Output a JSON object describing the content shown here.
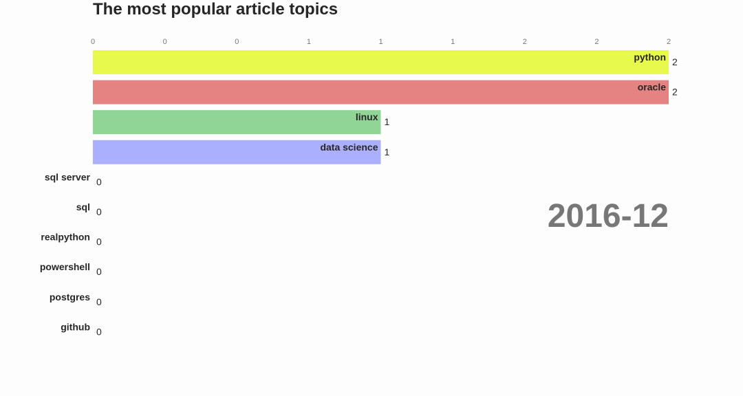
{
  "chart_data": {
    "type": "bar",
    "orientation": "horizontal",
    "title": "The most popular article topics",
    "period": "2016-12",
    "categories": [
      "python",
      "oracle",
      "linux",
      "data science",
      "sql server",
      "sql",
      "realpython",
      "powershell",
      "postgres",
      "github"
    ],
    "values": [
      2,
      2,
      1,
      1,
      0,
      0,
      0,
      0,
      0,
      0
    ],
    "value_labels": [
      "2",
      "2",
      "1",
      "1",
      "0",
      "0",
      "0",
      "0",
      "0",
      "0"
    ],
    "colors": [
      "#e8f94d",
      "#e58282",
      "#90d595",
      "#aaaffe",
      "#aaaffe",
      "#aaaffe",
      "#aaaffe",
      "#aaaffe",
      "#aaaffe",
      "#aaaffe"
    ],
    "tick_labels": [
      "0",
      "0",
      "0",
      "1",
      "1",
      "1",
      "2",
      "2",
      "2"
    ],
    "xlim": [
      0,
      2
    ],
    "xlabel": "",
    "ylabel": "",
    "grid": false,
    "legend": "none"
  }
}
